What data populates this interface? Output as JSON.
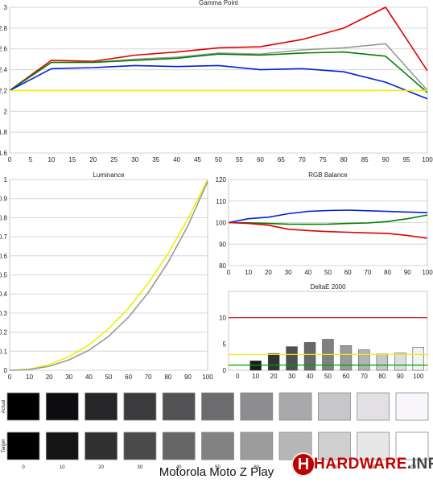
{
  "device_title": "Motorola Moto Z Play",
  "watermark": {
    "brand": "HARDWARE",
    "tld": ".INFO",
    "logo_letter": "H"
  },
  "chart_data": [
    {
      "id": "gamma",
      "type": "line",
      "title": "Gamma Point",
      "x": [
        0,
        10,
        20,
        30,
        40,
        50,
        60,
        70,
        80,
        90,
        100
      ],
      "xticks": [
        0,
        5,
        10,
        15,
        20,
        25,
        30,
        35,
        40,
        45,
        50,
        55,
        60,
        65,
        70,
        75,
        80,
        85,
        90,
        95,
        100
      ],
      "ylim": [
        1.6,
        3.0
      ],
      "yticks": [
        1.6,
        1.8,
        2.0,
        2.2,
        2.4,
        2.6,
        2.8,
        3.0
      ],
      "ytick_labels": [
        "1.6",
        "1.8",
        "2",
        "2.2",
        "2.4",
        "2.6",
        "2.8",
        "3"
      ],
      "series": [
        {
          "color": "#e00000",
          "values": [
            2.2,
            2.49,
            2.48,
            2.54,
            2.57,
            2.61,
            2.62,
            2.69,
            2.8,
            3.0,
            2.39
          ]
        },
        {
          "color": "#999999",
          "values": [
            2.2,
            2.47,
            2.47,
            2.5,
            2.52,
            2.56,
            2.55,
            2.59,
            2.61,
            2.65,
            2.2
          ]
        },
        {
          "color": "#008000",
          "values": [
            2.2,
            2.47,
            2.47,
            2.49,
            2.51,
            2.55,
            2.54,
            2.56,
            2.57,
            2.53,
            2.18
          ]
        },
        {
          "color": "#0020e0",
          "values": [
            2.2,
            2.41,
            2.42,
            2.44,
            2.43,
            2.44,
            2.4,
            2.41,
            2.38,
            2.28,
            2.12
          ]
        },
        {
          "color": "#f0f000",
          "values": [
            2.2,
            2.2,
            2.2,
            2.2,
            2.2,
            2.2,
            2.2,
            2.2,
            2.2,
            2.2,
            2.2
          ]
        }
      ]
    },
    {
      "id": "luminance",
      "type": "line",
      "title": "Luminance",
      "x": [
        0,
        10,
        20,
        30,
        40,
        50,
        60,
        70,
        80,
        90,
        100
      ],
      "xticks": [
        0,
        10,
        20,
        30,
        40,
        50,
        60,
        70,
        80,
        90,
        100
      ],
      "ylim": [
        0,
        1
      ],
      "yticks": [
        0,
        0.1,
        0.2,
        0.3,
        0.4,
        0.5,
        0.6,
        0.7,
        0.8,
        0.9,
        1.0
      ],
      "ytick_labels": [
        "0",
        "0.1",
        "0.2",
        "0.3",
        "0.4",
        "0.5",
        "0.6",
        "0.7",
        "0.8",
        "0.9",
        "1"
      ],
      "series": [
        {
          "color": "#f0f000",
          "values": [
            0,
            0.006,
            0.03,
            0.072,
            0.133,
            0.218,
            0.325,
            0.456,
            0.612,
            0.793,
            1.0
          ]
        },
        {
          "color": "#999999",
          "values": [
            0,
            0.004,
            0.021,
            0.055,
            0.105,
            0.178,
            0.278,
            0.407,
            0.566,
            0.757,
            0.99
          ]
        }
      ]
    },
    {
      "id": "rgb",
      "type": "line",
      "title": "RGB Balance",
      "x": [
        0,
        10,
        20,
        30,
        40,
        50,
        60,
        70,
        80,
        90,
        100
      ],
      "xticks": [
        0,
        10,
        20,
        30,
        40,
        50,
        60,
        70,
        80,
        90,
        100
      ],
      "ylim": [
        80,
        120
      ],
      "yticks": [
        80,
        90,
        100,
        110,
        120
      ],
      "ytick_labels": [
        "80",
        "90",
        "100",
        "110",
        "120"
      ],
      "series": [
        {
          "color": "#0020e0",
          "values": [
            100,
            101.8,
            102.5,
            104.1,
            105.2,
            105.6,
            105.8,
            105.5,
            105.2,
            104.9,
            104.6
          ]
        },
        {
          "color": "#008000",
          "values": [
            100,
            99.9,
            99.6,
            99.3,
            99.2,
            99.3,
            99.6,
            99.8,
            100.5,
            101.8,
            103.5
          ]
        },
        {
          "color": "#e00000",
          "values": [
            100,
            99.6,
            98.8,
            96.9,
            96.3,
            95.8,
            95.5,
            95.2,
            95.0,
            94.0,
            92.8
          ]
        }
      ]
    },
    {
      "id": "deltae",
      "type": "bar",
      "title": "DeltaE 2000",
      "categories": [
        "0",
        "10",
        "20",
        "30",
        "40",
        "50",
        "60",
        "70",
        "80",
        "90",
        "100"
      ],
      "values": [
        0.0,
        1.8,
        3.2,
        4.5,
        5.3,
        5.9,
        4.7,
        3.9,
        3.1,
        3.3,
        4.4
      ],
      "bar_shades": [
        "#000000",
        "#1a1a1a",
        "#333333",
        "#505050",
        "#686868",
        "#808080",
        "#9a9a9a",
        "#b2b2b2",
        "#c8c8c8",
        "#dedede",
        "#f2f2f2"
      ],
      "ylim": [
        0,
        15
      ],
      "yticks": [
        0,
        5,
        10
      ],
      "ytick_labels": [
        "0",
        "5",
        "10"
      ],
      "reference_lines": [
        {
          "value": 10,
          "color": "#c00000"
        },
        {
          "value": 3,
          "color": "#f0f000"
        },
        {
          "value": 1,
          "color": "#00a000"
        }
      ]
    }
  ],
  "swatches": {
    "row_labels": [
      "Actual",
      "Target"
    ],
    "labels": [
      "0",
      "10",
      "20",
      "30",
      "40",
      "50",
      "60",
      "70",
      "80",
      "90",
      "100"
    ],
    "actual": [
      "#000000",
      "#0d0d0f",
      "#262628",
      "#3b3b3d",
      "#525254",
      "#6c6c6e",
      "#8d8d8f",
      "#a9a8aa",
      "#c7c6c8",
      "#e2e0e4",
      "#f9f6fb"
    ],
    "target": [
      "#000000",
      "#141414",
      "#303030",
      "#4a4a4a",
      "#666666",
      "#828282",
      "#9c9c9c",
      "#b6b6b6",
      "#cfcfcf",
      "#e7e7e7",
      "#ffffff"
    ]
  }
}
